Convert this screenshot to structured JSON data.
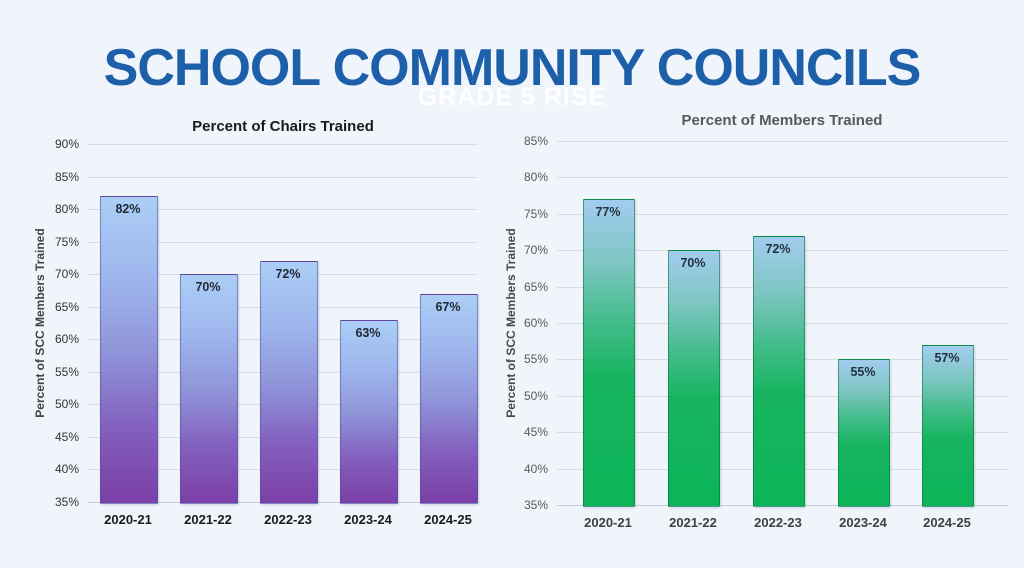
{
  "page": {
    "background": "#f0f4fb",
    "title": "SCHOOL COMMUNITY COUNCILS",
    "title_color": "#1e5fa9",
    "watermark": "GRADE 5 RISE",
    "watermark_color": "#ffffff"
  },
  "chart_data": [
    {
      "type": "bar",
      "title": "Percent of Chairs Trained",
      "title_color": "#1a1a1a",
      "ylabel": "Percent of SCC Members Trained",
      "ylabel_color": "#444444",
      "xlabel": "",
      "categories": [
        "2020-21",
        "2021-22",
        "2022-23",
        "2023-24",
        "2024-25"
      ],
      "values": [
        82,
        70,
        72,
        63,
        67
      ],
      "data_labels": [
        "82%",
        "70%",
        "72%",
        "63%",
        "67%"
      ],
      "value_label_color": "#1f2733",
      "ylim": [
        35,
        90
      ],
      "ytick_step": 5,
      "tick_suffix": "%",
      "tick_color": "#333333",
      "xtick_color": "#1a1a1a",
      "grid": true,
      "grid_color": "#d7dce4",
      "legend_position": "none",
      "bar_gradient": [
        "#abcef6 0%",
        "#9db4ec 28%",
        "#8f92d8 52%",
        "#8360bf 75%",
        "#7c3fa8 100%"
      ],
      "bar_border_color": "rgba(84,74,150,0.55)"
    },
    {
      "type": "bar",
      "title": "Percent of Members Trained",
      "title_color": "#595959",
      "ylabel": "Percent of SCC Members Trained",
      "ylabel_color": "#4a4a4a",
      "xlabel": "",
      "categories": [
        "2020-21",
        "2021-22",
        "2022-23",
        "2023-24",
        "2024-25"
      ],
      "values": [
        77,
        70,
        72,
        55,
        57
      ],
      "data_labels": [
        "77%",
        "70%",
        "72%",
        "55%",
        "57%"
      ],
      "value_label_color": "#243140",
      "ylim": [
        35,
        85
      ],
      "ytick_step": 5,
      "tick_suffix": "%",
      "tick_color": "#595959",
      "xtick_color": "#404040",
      "grid": true,
      "grid_color": "#d7dce4",
      "legend_position": "none",
      "bar_gradient": [
        "#a2ccef 0%",
        "#7fc6c4 20%",
        "#43bc8a 40%",
        "#17b460 58%",
        "#0cb457 100%"
      ],
      "bar_border_color": "rgba(10,110,60,0.55)"
    }
  ]
}
